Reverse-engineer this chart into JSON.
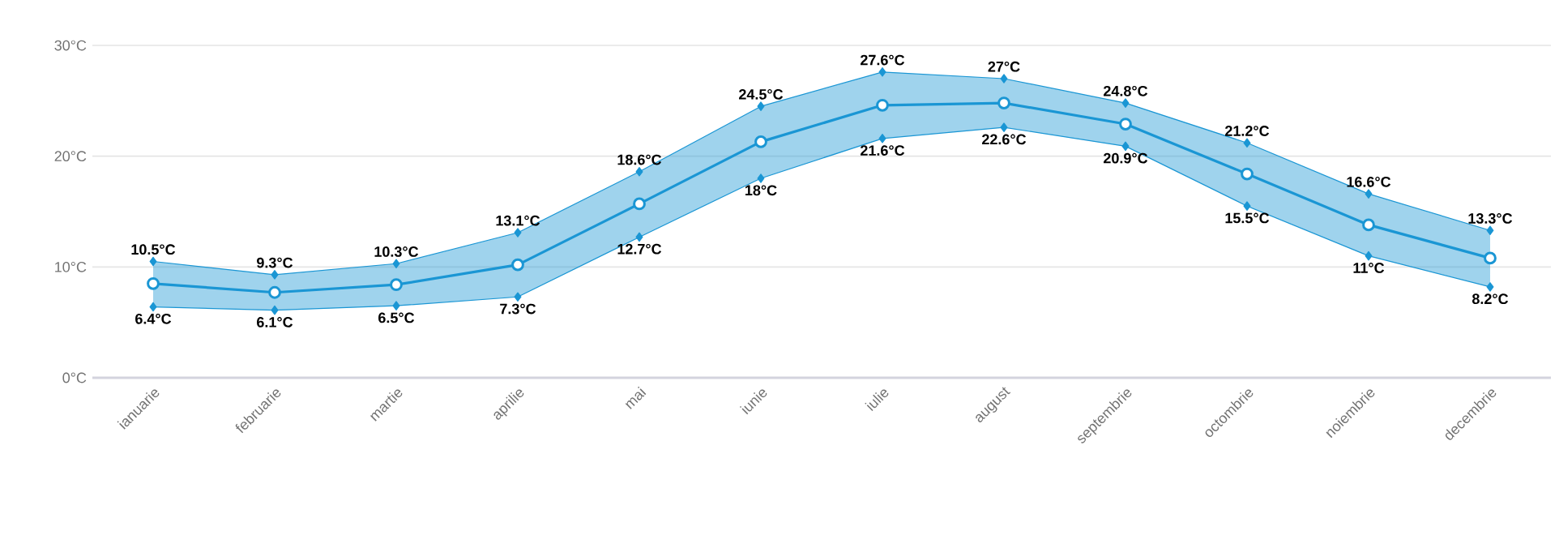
{
  "chart_data": {
    "type": "line",
    "categories": [
      "ianuarie",
      "februarie",
      "martie",
      "aprilie",
      "mai",
      "iunie",
      "iulie",
      "august",
      "septembrie",
      "octombrie",
      "noiembrie",
      "decembrie"
    ],
    "series": [
      {
        "color": "#1a96d4",
        "marker": "diamond",
        "values": [
          10.5,
          9.3,
          10.3,
          13.1,
          18.6,
          24.5,
          27.6,
          27,
          24.8,
          21.2,
          16.6,
          13.3
        ],
        "value_labels": [
          "10.5°C",
          "9.3°C",
          "10.3°C",
          "13.1°C",
          "18.6°C",
          "24.5°C",
          "27.6°C",
          "27°C",
          "24.8°C",
          "21.2°C",
          "16.6°C",
          "13.3°C"
        ]
      },
      {
        "color": "#1a96d4",
        "marker": "diamond",
        "values": [
          6.4,
          6.1,
          6.5,
          7.3,
          12.7,
          18,
          21.6,
          22.6,
          20.9,
          15.5,
          11,
          8.2
        ],
        "value_labels": [
          "6.4°C",
          "6.1°C",
          "6.5°C",
          "7.3°C",
          "12.7°C",
          "18°C",
          "21.6°C",
          "22.6°C",
          "20.9°C",
          "15.5°C",
          "11°C",
          "8.2°C"
        ]
      },
      {
        "color": "#1a96d4",
        "marker": "circle",
        "values": [
          8.5,
          7.7,
          8.4,
          10.2,
          15.7,
          21.3,
          24.6,
          24.8,
          22.9,
          18.4,
          13.8,
          10.8
        ],
        "lower": [
          6.4,
          6.1,
          6.5,
          7.3,
          12.7,
          18,
          21.6,
          22.6,
          20.9,
          15.5,
          11,
          8.2
        ],
        "upper": [
          10.5,
          9.3,
          10.3,
          13.1,
          18.6,
          24.5,
          27.6,
          27,
          24.8,
          21.2,
          16.6,
          13.3
        ]
      }
    ],
    "ylim": [
      0,
      30
    ],
    "yticks": [
      {
        "value": 0,
        "label": "0°C"
      },
      {
        "value": 10,
        "label": "10°C"
      },
      {
        "value": 20,
        "label": "20°C"
      },
      {
        "value": 30,
        "label": "30°C"
      }
    ],
    "grid": "y"
  }
}
